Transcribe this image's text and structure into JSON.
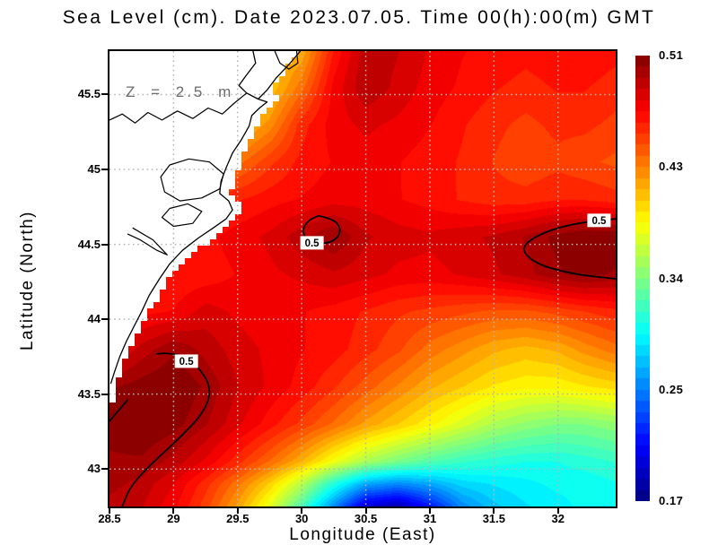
{
  "chart_data": {
    "type": "heatmap",
    "title": "Sea Level (cm). Date 2023.07.05. Time 00(h):00(m) GMT",
    "xlabel": "Longitude (East)",
    "ylabel": "Latitude (North)",
    "annotation": "Z = 2.5 m",
    "xlim": [
      28.5,
      32.45
    ],
    "ylim": [
      42.75,
      45.79
    ],
    "x_ticks": [
      {
        "v": 28.5,
        "label": "28.5"
      },
      {
        "v": 29,
        "label": "29"
      },
      {
        "v": 29.5,
        "label": "29.5"
      },
      {
        "v": 30,
        "label": "30"
      },
      {
        "v": 30.5,
        "label": "30.5"
      },
      {
        "v": 31,
        "label": "31"
      },
      {
        "v": 31.5,
        "label": "31.5"
      },
      {
        "v": 32,
        "label": "32"
      }
    ],
    "y_ticks": [
      {
        "v": 45.5,
        "label": "45.5"
      },
      {
        "v": 45,
        "label": "45"
      },
      {
        "v": 44.5,
        "label": "44.5"
      },
      {
        "v": 44,
        "label": "44"
      },
      {
        "v": 43.5,
        "label": "43.5"
      },
      {
        "v": 43,
        "label": "43"
      }
    ],
    "grid": "dotted",
    "legend_position": "right-colorbar",
    "colorbar": {
      "min": 0.17,
      "max": 0.51,
      "levels": 40,
      "colormap": "jet",
      "tick_labels": [
        "0.51",
        "0.43",
        "0.34",
        "0.25",
        "0.17"
      ]
    },
    "contour_level": 0.5,
    "contour_labels": [
      {
        "text": "0.5",
        "lon": 30.08,
        "lat": 44.51
      },
      {
        "text": "0.5",
        "lon": 32.32,
        "lat": 44.66
      },
      {
        "text": "0.5",
        "lon": 29.1,
        "lat": 43.72
      }
    ],
    "contours": {
      "blob_center": [
        [
          30.13,
          44.69
        ],
        [
          30.25,
          44.67
        ],
        [
          30.31,
          44.6
        ],
        [
          30.27,
          44.53
        ],
        [
          30.16,
          44.5
        ],
        [
          30.05,
          44.52
        ],
        [
          30.0,
          44.59
        ],
        [
          30.05,
          44.66
        ],
        [
          30.13,
          44.69
        ]
      ],
      "blob_east": [
        [
          32.45,
          44.67
        ],
        [
          32.18,
          44.65
        ],
        [
          31.88,
          44.58
        ],
        [
          31.7,
          44.48
        ],
        [
          31.82,
          44.37
        ],
        [
          32.12,
          44.3
        ],
        [
          32.45,
          44.27
        ]
      ],
      "band_southwest": [
        [
          28.87,
          43.77
        ],
        [
          29.02,
          43.78
        ],
        [
          29.18,
          43.7
        ],
        [
          29.3,
          43.54
        ],
        [
          29.24,
          43.38
        ],
        [
          29.04,
          43.2
        ],
        [
          28.82,
          43.03
        ],
        [
          28.66,
          42.88
        ],
        [
          28.6,
          42.75
        ]
      ],
      "band_southwest_west": [
        [
          28.5,
          43.32
        ],
        [
          28.58,
          43.4
        ],
        [
          28.64,
          43.46
        ]
      ]
    },
    "map": {
      "land_edge": [
        [
          29.99,
          45.79
        ],
        [
          29.92,
          45.7
        ],
        [
          29.82,
          45.6
        ],
        [
          29.75,
          45.52
        ],
        [
          29.81,
          45.47
        ],
        [
          29.74,
          45.41
        ],
        [
          29.68,
          45.31
        ],
        [
          29.61,
          45.21
        ],
        [
          29.56,
          45.11
        ],
        [
          29.51,
          45.01
        ],
        [
          29.47,
          44.91
        ],
        [
          29.45,
          44.83
        ],
        [
          29.51,
          44.77
        ],
        [
          29.53,
          44.71
        ],
        [
          29.45,
          44.63
        ],
        [
          29.35,
          44.57
        ],
        [
          29.23,
          44.49
        ],
        [
          29.11,
          44.41
        ],
        [
          29.01,
          44.31
        ],
        [
          28.93,
          44.21
        ],
        [
          28.86,
          44.11
        ],
        [
          28.79,
          44.01
        ],
        [
          28.73,
          43.91
        ],
        [
          28.67,
          43.81
        ],
        [
          28.62,
          43.71
        ],
        [
          28.58,
          43.61
        ],
        [
          28.55,
          43.51
        ],
        [
          28.5,
          43.4
        ]
      ],
      "coast_main": [
        [
          29.62,
          45.79
        ],
        [
          29.64,
          45.71
        ],
        [
          29.56,
          45.62
        ],
        [
          29.51,
          45.56
        ],
        [
          29.57,
          45.51
        ],
        [
          29.66,
          45.47
        ],
        [
          29.73,
          45.45
        ],
        [
          29.67,
          45.41
        ],
        [
          29.61,
          45.36
        ],
        [
          29.59,
          45.29
        ],
        [
          29.53,
          45.2
        ],
        [
          29.46,
          45.11
        ],
        [
          29.41,
          45.01
        ],
        [
          29.37,
          44.92
        ],
        [
          29.36,
          44.84
        ],
        [
          29.43,
          44.79
        ],
        [
          29.46,
          44.73
        ],
        [
          29.41,
          44.67
        ],
        [
          29.31,
          44.61
        ],
        [
          29.19,
          44.54
        ],
        [
          29.07,
          44.46
        ],
        [
          28.97,
          44.37
        ],
        [
          28.89,
          44.27
        ],
        [
          28.81,
          44.16
        ],
        [
          28.75,
          44.05
        ],
        [
          28.69,
          43.95
        ],
        [
          28.63,
          43.85
        ],
        [
          28.58,
          43.75
        ],
        [
          28.54,
          43.65
        ],
        [
          28.51,
          43.57
        ]
      ],
      "delta_seaward": [
        [
          29.99,
          45.79
        ],
        [
          29.9,
          45.7
        ],
        [
          29.8,
          45.61
        ],
        [
          29.73,
          45.53
        ],
        [
          29.66,
          45.47
        ]
      ],
      "river": [
        [
          28.5,
          45.33
        ],
        [
          28.6,
          45.37
        ],
        [
          28.7,
          45.31
        ],
        [
          28.8,
          45.38
        ],
        [
          28.91,
          45.33
        ],
        [
          29.03,
          45.39
        ],
        [
          29.15,
          45.34
        ],
        [
          29.27,
          45.41
        ],
        [
          29.38,
          45.37
        ],
        [
          29.47,
          45.44
        ],
        [
          29.57,
          45.51
        ]
      ],
      "top_claw": [
        [
          29.79,
          45.79
        ],
        [
          29.83,
          45.71
        ],
        [
          29.9,
          45.67
        ],
        [
          29.97,
          45.71
        ],
        [
          29.96,
          45.79
        ]
      ],
      "lagoon1": [
        [
          28.97,
          45.03
        ],
        [
          29.12,
          45.07
        ],
        [
          29.28,
          45.05
        ],
        [
          29.39,
          44.97
        ],
        [
          29.36,
          44.87
        ],
        [
          29.22,
          44.81
        ],
        [
          29.05,
          44.79
        ],
        [
          28.93,
          44.85
        ],
        [
          28.9,
          44.95
        ],
        [
          28.97,
          45.03
        ]
      ],
      "lagoon2": [
        [
          28.97,
          44.74
        ],
        [
          29.11,
          44.77
        ],
        [
          29.22,
          44.72
        ],
        [
          29.15,
          44.64
        ],
        [
          29.0,
          44.62
        ],
        [
          28.91,
          44.68
        ],
        [
          28.97,
          44.74
        ]
      ],
      "hook": [
        [
          28.68,
          44.61
        ],
        [
          28.84,
          44.53
        ],
        [
          28.95,
          44.43
        ],
        [
          28.87,
          44.46
        ],
        [
          28.74,
          44.53
        ],
        [
          28.64,
          44.57
        ]
      ]
    },
    "field": {
      "lons": [
        28.5,
        28.75,
        29.0,
        29.25,
        29.5,
        29.75,
        30.0,
        30.25,
        30.5,
        30.75,
        31.0,
        31.25,
        31.5,
        31.75,
        32.0,
        32.2,
        32.45
      ],
      "lats": [
        45.79,
        45.55,
        45.3,
        45.05,
        44.8,
        44.55,
        44.3,
        44.05,
        43.8,
        43.55,
        43.3,
        43.05,
        42.9,
        42.75
      ],
      "values": [
        [
          0.42,
          0.42,
          0.42,
          0.41,
          0.4,
          0.4,
          0.41,
          0.46,
          0.49,
          0.485,
          0.475,
          0.468,
          0.465,
          0.462,
          0.465,
          0.466,
          0.462
        ],
        [
          0.42,
          0.42,
          0.41,
          0.4,
          0.4,
          0.4,
          0.43,
          0.47,
          0.492,
          0.482,
          0.472,
          0.466,
          0.46,
          0.456,
          0.46,
          0.46,
          0.455
        ],
        [
          0.42,
          0.42,
          0.41,
          0.4,
          0.4,
          0.42,
          0.455,
          0.472,
          0.478,
          0.474,
          0.468,
          0.46,
          0.453,
          0.448,
          0.453,
          0.453,
          0.448
        ],
        [
          0.43,
          0.43,
          0.43,
          0.43,
          0.43,
          0.448,
          0.462,
          0.468,
          0.472,
          0.468,
          0.463,
          0.458,
          0.45,
          0.444,
          0.448,
          0.444,
          0.44
        ],
        [
          0.45,
          0.45,
          0.45,
          0.45,
          0.458,
          0.464,
          0.468,
          0.472,
          0.472,
          0.468,
          0.464,
          0.458,
          0.454,
          0.454,
          0.458,
          0.458,
          0.454
        ],
        [
          0.46,
          0.46,
          0.46,
          0.465,
          0.472,
          0.478,
          0.49,
          0.502,
          0.486,
          0.48,
          0.478,
          0.482,
          0.486,
          0.494,
          0.505,
          0.51,
          0.51
        ],
        [
          0.46,
          0.46,
          0.46,
          0.462,
          0.468,
          0.474,
          0.478,
          0.483,
          0.479,
          0.474,
          0.473,
          0.477,
          0.483,
          0.49,
          0.5,
          0.505,
          0.5
        ],
        [
          0.46,
          0.465,
          0.468,
          0.48,
          0.474,
          0.47,
          0.468,
          0.464,
          0.458,
          0.452,
          0.448,
          0.444,
          0.44,
          0.44,
          0.445,
          0.45,
          0.456
        ],
        [
          0.47,
          0.488,
          0.5,
          0.49,
          0.48,
          0.474,
          0.468,
          0.463,
          0.454,
          0.444,
          0.43,
          0.42,
          0.41,
          0.405,
          0.41,
          0.42,
          0.43
        ],
        [
          0.5,
          0.506,
          0.51,
          0.5,
          0.485,
          0.474,
          0.464,
          0.452,
          0.438,
          0.424,
          0.41,
          0.4,
          0.39,
          0.385,
          0.385,
          0.39,
          0.395
        ],
        [
          0.505,
          0.51,
          0.505,
          0.494,
          0.478,
          0.463,
          0.448,
          0.432,
          0.414,
          0.4,
          0.385,
          0.37,
          0.355,
          0.346,
          0.34,
          0.34,
          0.346
        ],
        [
          0.5,
          0.5,
          0.49,
          0.474,
          0.454,
          0.433,
          0.408,
          0.378,
          0.354,
          0.338,
          0.325,
          0.316,
          0.31,
          0.306,
          0.306,
          0.31,
          0.315
        ],
        [
          0.496,
          0.49,
          0.476,
          0.454,
          0.428,
          0.398,
          0.358,
          0.308,
          0.268,
          0.258,
          0.268,
          0.284,
          0.29,
          0.295,
          0.3,
          0.3,
          0.305
        ],
        [
          0.49,
          0.485,
          0.47,
          0.446,
          0.414,
          0.374,
          0.322,
          0.258,
          0.198,
          0.185,
          0.218,
          0.258,
          0.278,
          0.288,
          0.294,
          0.3,
          0.305
        ]
      ]
    }
  }
}
